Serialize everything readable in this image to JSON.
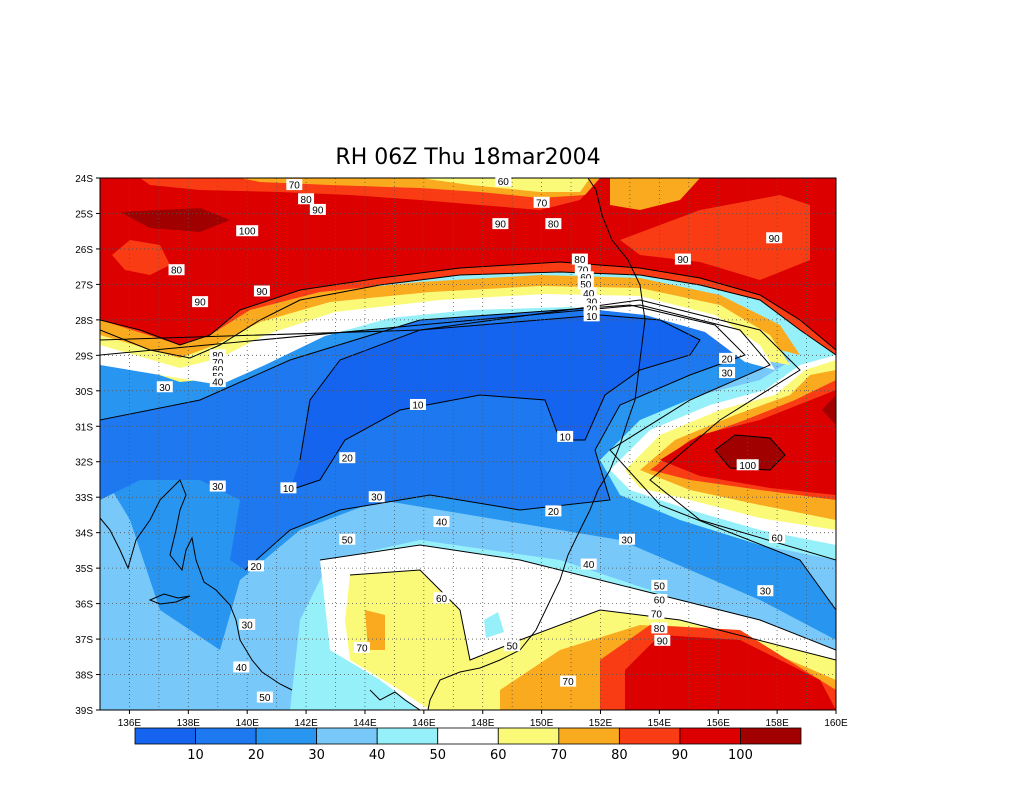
{
  "title": "RH 06Z Thu 18mar2004",
  "lat_labels": [
    "24S",
    "25S",
    "26S",
    "27S",
    "28S",
    "29S",
    "30S",
    "31S",
    "32S",
    "33S",
    "34S",
    "35S",
    "36S",
    "37S",
    "38S",
    "39S"
  ],
  "lon_labels": [
    "136E",
    "138E",
    "140E",
    "142E",
    "144E",
    "146E",
    "148E",
    "150E",
    "152E",
    "154E",
    "156E",
    "158E",
    "160E"
  ],
  "colorbar": {
    "colors": [
      "#1464f0",
      "#1e78f0",
      "#2896f0",
      "#78c8fa",
      "#96f0fa",
      "#ffffff",
      "#fafa78",
      "#faaa1e",
      "#fa3c14",
      "#dc0000",
      "#a00000"
    ],
    "labels": [
      "10",
      "20",
      "30",
      "40",
      "50",
      "60",
      "70",
      "80",
      "90",
      "100"
    ]
  },
  "contour_labels": [
    {
      "text": "60",
      "lon": 148.7,
      "lat": -24.1
    },
    {
      "text": "70",
      "lon": 141.6,
      "lat": -24.2
    },
    {
      "text": "80",
      "lon": 142.0,
      "lat": -24.6
    },
    {
      "text": "90",
      "lon": 142.4,
      "lat": -24.9
    },
    {
      "text": "70",
      "lon": 150.0,
      "lat": -24.7
    },
    {
      "text": "80",
      "lon": 150.4,
      "lat": -25.3
    },
    {
      "text": "90",
      "lon": 148.6,
      "lat": -25.3
    },
    {
      "text": "100",
      "lon": 140.0,
      "lat": -25.5
    },
    {
      "text": "90",
      "lon": 157.9,
      "lat": -25.7
    },
    {
      "text": "90",
      "lon": 154.8,
      "lat": -26.3
    },
    {
      "text": "80",
      "lon": 137.6,
      "lat": -26.6
    },
    {
      "text": "90",
      "lon": 140.5,
      "lat": -27.2
    },
    {
      "text": "90",
      "lon": 138.4,
      "lat": -27.5
    },
    {
      "text": "80",
      "lon": 151.3,
      "lat": -26.3
    },
    {
      "text": "70",
      "lon": 151.4,
      "lat": -26.6
    },
    {
      "text": "60",
      "lon": 151.5,
      "lat": -26.8
    },
    {
      "text": "50",
      "lon": 151.5,
      "lat": -27.0
    },
    {
      "text": "40",
      "lon": 151.6,
      "lat": -27.25
    },
    {
      "text": "30",
      "lon": 151.7,
      "lat": -27.5
    },
    {
      "text": "20",
      "lon": 151.7,
      "lat": -27.7
    },
    {
      "text": "10",
      "lon": 151.7,
      "lat": -27.9
    },
    {
      "text": "80",
      "lon": 139.0,
      "lat": -29.0
    },
    {
      "text": "70",
      "lon": 139.0,
      "lat": -29.2
    },
    {
      "text": "60",
      "lon": 139.0,
      "lat": -29.4
    },
    {
      "text": "50",
      "lon": 139.0,
      "lat": -29.6
    },
    {
      "text": "40",
      "lon": 139.0,
      "lat": -29.75
    },
    {
      "text": "30",
      "lon": 137.2,
      "lat": -29.9
    },
    {
      "text": "20",
      "lon": 156.3,
      "lat": -29.1
    },
    {
      "text": "30",
      "lon": 156.3,
      "lat": -29.5
    },
    {
      "text": "10",
      "lon": 145.8,
      "lat": -30.4
    },
    {
      "text": "10",
      "lon": 150.8,
      "lat": -31.3
    },
    {
      "text": "20",
      "lon": 143.4,
      "lat": -31.9
    },
    {
      "text": "100",
      "lon": 157.0,
      "lat": -32.1
    },
    {
      "text": "30",
      "lon": 139.0,
      "lat": -32.7
    },
    {
      "text": "10",
      "lon": 141.4,
      "lat": -32.75
    },
    {
      "text": "30",
      "lon": 144.4,
      "lat": -33.0
    },
    {
      "text": "40",
      "lon": 146.6,
      "lat": -33.7
    },
    {
      "text": "20",
      "lon": 150.4,
      "lat": -33.4
    },
    {
      "text": "50",
      "lon": 143.4,
      "lat": -34.2
    },
    {
      "text": "30",
      "lon": 152.9,
      "lat": -34.2
    },
    {
      "text": "60",
      "lon": 158.0,
      "lat": -34.15
    },
    {
      "text": "20",
      "lon": 140.3,
      "lat": -34.95
    },
    {
      "text": "40",
      "lon": 151.6,
      "lat": -34.9
    },
    {
      "text": "50",
      "lon": 154.0,
      "lat": -35.5
    },
    {
      "text": "60",
      "lon": 154.0,
      "lat": -35.9
    },
    {
      "text": "30",
      "lon": 157.6,
      "lat": -35.65
    },
    {
      "text": "60",
      "lon": 146.6,
      "lat": -35.85
    },
    {
      "text": "70",
      "lon": 153.9,
      "lat": -36.3
    },
    {
      "text": "80",
      "lon": 154.0,
      "lat": -36.7
    },
    {
      "text": "30",
      "lon": 140.0,
      "lat": -36.6
    },
    {
      "text": "90",
      "lon": 154.1,
      "lat": -37.05
    },
    {
      "text": "50",
      "lon": 149.0,
      "lat": -37.2
    },
    {
      "text": "70",
      "lon": 143.9,
      "lat": -37.25
    },
    {
      "text": "40",
      "lon": 139.8,
      "lat": -37.8
    },
    {
      "text": "70",
      "lon": 150.9,
      "lat": -38.2
    },
    {
      "text": "50",
      "lon": 140.6,
      "lat": -38.65
    }
  ]
}
